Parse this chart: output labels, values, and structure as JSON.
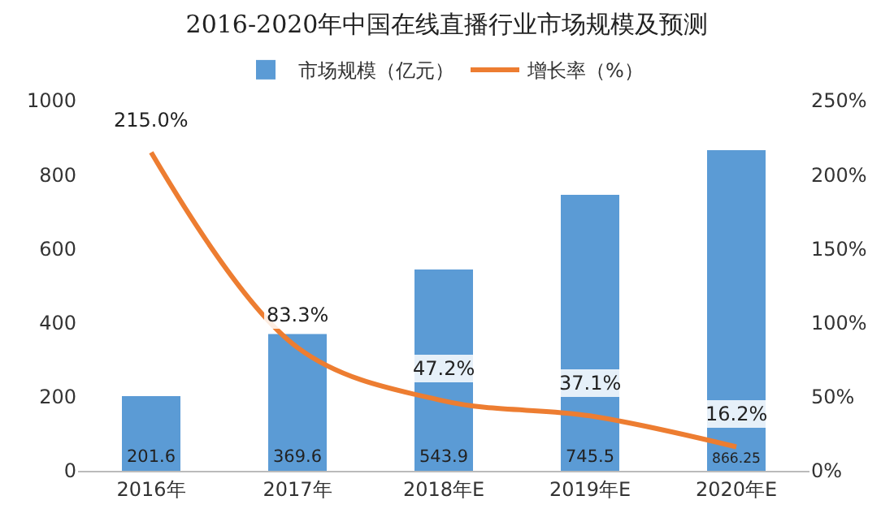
{
  "chart_data": {
    "type": "bar",
    "title": "2016-2020年中国在线直播行业市场规模及预测",
    "categories": [
      "2016年",
      "2017年",
      "2018年E",
      "2019年E",
      "2020年E"
    ],
    "series": [
      {
        "name": "市场规模（亿元）",
        "color": "#5b9bd5",
        "values": [
          201.6,
          369.6,
          543.9,
          745.5,
          866.25
        ],
        "value_labels": [
          "201.6",
          "369.6",
          "543.9",
          "745.5",
          "866.25"
        ]
      },
      {
        "name": "增长率（%）",
        "type": "line",
        "axis": "y2",
        "color": "#ed7d31",
        "values": [
          215.0,
          83.3,
          47.2,
          37.1,
          16.2
        ],
        "value_labels": [
          "215.0%",
          "83.3%",
          "47.2%",
          "37.1%",
          "16.2%"
        ]
      }
    ],
    "ylim": [
      0,
      1000
    ],
    "yticks": [
      0,
      200,
      400,
      600,
      800,
      1000
    ],
    "y2lim": [
      0,
      250
    ],
    "y2ticks": [
      {
        "value": 0,
        "label": "0%"
      },
      {
        "value": 50,
        "label": "50%"
      },
      {
        "value": 100,
        "label": "100%"
      },
      {
        "value": 150,
        "label": "150%"
      },
      {
        "value": 200,
        "label": "200%"
      },
      {
        "value": 250,
        "label": "250%"
      }
    ],
    "grid": false,
    "legend": "top",
    "marker": "none",
    "line_style": "solid"
  }
}
